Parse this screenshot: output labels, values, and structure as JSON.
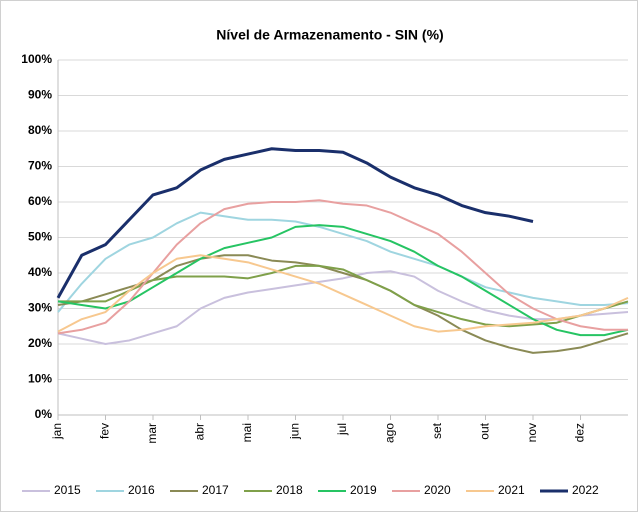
{
  "chart_data": {
    "type": "line",
    "title": "Nível de Armazenamento - SIN (%)",
    "x": [
      0,
      0.5,
      1,
      1.5,
      2,
      2.5,
      3,
      3.5,
      4,
      4.5,
      5,
      5.5,
      6,
      6.5,
      7,
      7.5,
      8,
      8.5,
      9,
      9.5,
      10,
      10.5,
      11,
      11.5,
      12
    ],
    "xlim": [
      0,
      12
    ],
    "xticks": [
      {
        "value": 0,
        "label": "jan"
      },
      {
        "value": 1,
        "label": "fev"
      },
      {
        "value": 2,
        "label": "mar"
      },
      {
        "value": 3,
        "label": "abr"
      },
      {
        "value": 4,
        "label": "mai"
      },
      {
        "value": 5,
        "label": "jun"
      },
      {
        "value": 6,
        "label": "jul"
      },
      {
        "value": 7,
        "label": "ago"
      },
      {
        "value": 8,
        "label": "set"
      },
      {
        "value": 9,
        "label": "out"
      },
      {
        "value": 10,
        "label": "nov"
      },
      {
        "value": 11,
        "label": "dez"
      }
    ],
    "ylim": [
      0,
      100
    ],
    "yticks": [
      {
        "value": 0,
        "label": "0%"
      },
      {
        "value": 10,
        "label": "10%"
      },
      {
        "value": 20,
        "label": "20%"
      },
      {
        "value": 30,
        "label": "30%"
      },
      {
        "value": 40,
        "label": "40%"
      },
      {
        "value": 50,
        "label": "50%"
      },
      {
        "value": 60,
        "label": "60%"
      },
      {
        "value": 70,
        "label": "70%"
      },
      {
        "value": 80,
        "label": "80%"
      },
      {
        "value": 90,
        "label": "90%"
      },
      {
        "value": 100,
        "label": "100%"
      }
    ],
    "grid": true,
    "legend": "bottom",
    "series": [
      {
        "name": "2015",
        "color": "#c9c0dd",
        "values": [
          23,
          21.5,
          20,
          21,
          23,
          25,
          30,
          33,
          34.5,
          35.5,
          36.5,
          37.5,
          38.5,
          40,
          40.5,
          39,
          35,
          32,
          29.5,
          28,
          27,
          27,
          28,
          28.5,
          29
        ]
      },
      {
        "name": "2016",
        "color": "#9fd5e0",
        "values": [
          29,
          37,
          44,
          48,
          50,
          54,
          57,
          56,
          55,
          55,
          54.5,
          53,
          51,
          49,
          46,
          44,
          42,
          39,
          36,
          34.5,
          33,
          32,
          31,
          31,
          31.5
        ]
      },
      {
        "name": "2017",
        "color": "#8a8a55",
        "values": [
          31,
          32,
          34,
          36,
          38,
          42,
          44,
          45,
          45,
          43.5,
          43,
          42,
          40,
          38,
          35,
          31,
          28,
          24,
          21,
          19,
          17.5,
          18,
          19,
          21,
          23
        ]
      },
      {
        "name": "2018",
        "color": "#7fa04a",
        "values": [
          32,
          32,
          32,
          35,
          38,
          39,
          39,
          39,
          38.5,
          40,
          42,
          42,
          41,
          38,
          35,
          31,
          29,
          27,
          25.5,
          25,
          25.5,
          26,
          28,
          30,
          32
        ]
      },
      {
        "name": "2019",
        "color": "#26c463",
        "values": [
          32,
          31,
          30,
          32,
          36,
          40,
          44,
          47,
          48.5,
          50,
          53,
          53.5,
          53,
          51,
          49,
          46,
          42,
          39,
          35,
          31,
          27,
          24,
          22.5,
          22.5,
          24
        ]
      },
      {
        "name": "2020",
        "color": "#e8a0a0",
        "values": [
          23,
          24,
          26,
          32,
          40,
          48,
          54,
          58,
          59.5,
          60,
          60,
          60.5,
          59.5,
          59,
          57,
          54,
          51,
          46,
          40,
          34,
          30,
          27,
          25,
          24,
          24
        ]
      },
      {
        "name": "2021",
        "color": "#f7c88f",
        "values": [
          23.5,
          27,
          29,
          35,
          40,
          44,
          45,
          44,
          43,
          41,
          39,
          37,
          34,
          31,
          28,
          25,
          23.5,
          24,
          25,
          25.5,
          26,
          27,
          28,
          30,
          33
        ]
      },
      {
        "name": "2022",
        "color": "#1a2f6b",
        "values": [
          33,
          45,
          48,
          55,
          62,
          64,
          69,
          72,
          73.5,
          75,
          74.5,
          74.5,
          74,
          71,
          67,
          64,
          62,
          59,
          57,
          56,
          54.5,
          null,
          null,
          null,
          null
        ]
      }
    ]
  }
}
